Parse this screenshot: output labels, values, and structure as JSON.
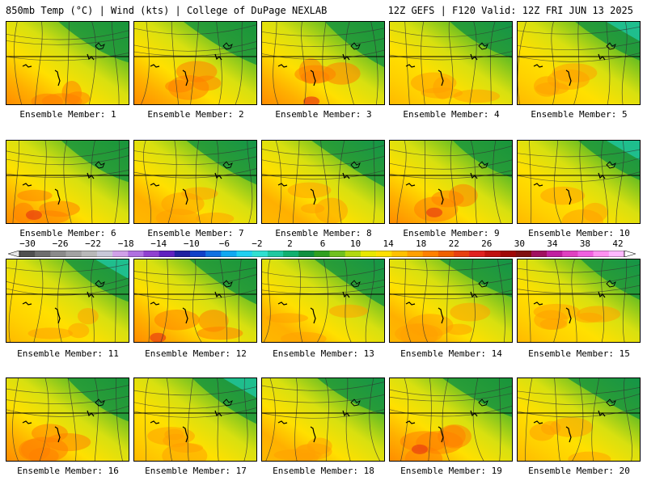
{
  "header": {
    "left": "850mb Temp (°C) | Wind (kts) | College of DuPage NEXLAB",
    "right": "12Z GEFS | F120 Valid: 12Z FRI JUN 13 2025"
  },
  "panels": [
    {
      "label": "Ensemble Member: 1",
      "warmth": 0.62,
      "warm_center": "south-west"
    },
    {
      "label": "Ensemble Member: 2",
      "warmth": 0.62,
      "warm_center": "south"
    },
    {
      "label": "Ensemble Member: 3",
      "warmth": 0.72,
      "warm_center": "south-west"
    },
    {
      "label": "Ensemble Member: 4",
      "warmth": 0.55,
      "warm_center": "south-west"
    },
    {
      "label": "Ensemble Member: 5",
      "warmth": 0.48,
      "warm_center": "south"
    },
    {
      "label": "Ensemble Member: 6",
      "warmth": 0.68,
      "warm_center": "west"
    },
    {
      "label": "Ensemble Member: 7",
      "warmth": 0.58,
      "warm_center": "south-west"
    },
    {
      "label": "Ensemble Member: 8",
      "warmth": 0.58,
      "warm_center": "south"
    },
    {
      "label": "Ensemble Member: 9",
      "warmth": 0.66,
      "warm_center": "south"
    },
    {
      "label": "Ensemble Member: 10",
      "warmth": 0.45,
      "warm_center": "south"
    },
    {
      "label": "Ensemble Member: 11",
      "warmth": 0.42,
      "warm_center": "south-west"
    },
    {
      "label": "Ensemble Member: 12",
      "warmth": 0.64,
      "warm_center": "south"
    },
    {
      "label": "Ensemble Member: 13",
      "warmth": 0.6,
      "warm_center": "south-west"
    },
    {
      "label": "Ensemble Member: 14",
      "warmth": 0.58,
      "warm_center": "south-west"
    },
    {
      "label": "Ensemble Member: 15",
      "warmth": 0.55,
      "warm_center": "south"
    },
    {
      "label": "Ensemble Member: 16",
      "warmth": 0.62,
      "warm_center": "south"
    },
    {
      "label": "Ensemble Member: 17",
      "warmth": 0.46,
      "warm_center": "south"
    },
    {
      "label": "Ensemble Member: 18",
      "warmth": 0.6,
      "warm_center": "south-west"
    },
    {
      "label": "Ensemble Member: 19",
      "warmth": 0.66,
      "warm_center": "south"
    },
    {
      "label": "Ensemble Member: 20",
      "warmth": 0.52,
      "warm_center": "south-west"
    }
  ],
  "colorbar": {
    "labels": [
      "−30",
      "−26",
      "−22",
      "−18",
      "−14",
      "−10",
      "−6",
      "−2",
      "2",
      "6",
      "10",
      "14",
      "18",
      "22",
      "26",
      "30",
      "34",
      "38",
      "42"
    ],
    "colors": [
      "#505050",
      "#6e6e6e",
      "#8a8a8a",
      "#a2a2a2",
      "#b8b8b8",
      "#c8c8d8",
      "#d0a0e8",
      "#b070e0",
      "#9040d0",
      "#6020c0",
      "#2020a0",
      "#1040c8",
      "#1070e0",
      "#10a8f0",
      "#20d0f0",
      "#30e0d0",
      "#20c8a0",
      "#10b070",
      "#109040",
      "#30a020",
      "#70c020",
      "#b0d810",
      "#e8e800",
      "#ffe000",
      "#ffc000",
      "#ffa000",
      "#ff8000",
      "#f06000",
      "#e84010",
      "#e02020",
      "#c01010",
      "#a00808",
      "#801010",
      "#a01060",
      "#c020a0",
      "#e040c0",
      "#f060e0",
      "#ff90f0",
      "#ffb8ff"
    ]
  }
}
